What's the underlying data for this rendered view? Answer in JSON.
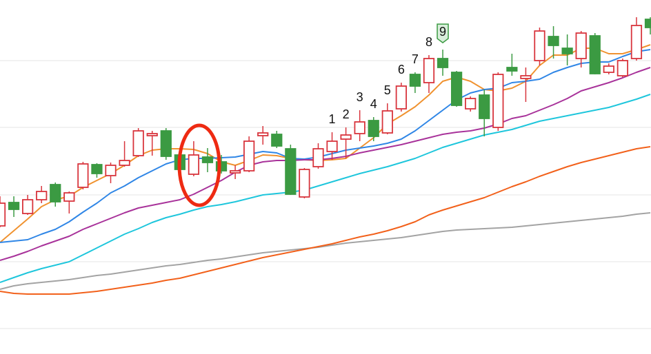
{
  "chart_data": {
    "type": "candlestick",
    "up_color": "#d8343c",
    "down_color": "#3b9a42",
    "ylim": [
      0,
      514
    ],
    "yticks": [
      37,
      134,
      231,
      329,
      426
    ],
    "grid": true,
    "open": [
      186,
      220,
      204,
      224,
      246,
      222,
      242,
      275,
      259,
      274,
      288,
      317,
      324,
      289,
      261,
      286,
      279,
      263,
      266,
      317,
      319,
      298,
      228,
      272,
      294,
      312,
      320,
      339,
      321,
      356,
      406,
      394,
      429,
      409,
      356,
      376,
      329,
      416,
      400,
      426,
      461,
      444,
      429,
      462,
      409,
      404,
      429,
      486
    ],
    "high": [
      229,
      229,
      231,
      244,
      249,
      236,
      279,
      277,
      278,
      309,
      328,
      324,
      328,
      292,
      309,
      299,
      289,
      274,
      316,
      331,
      324,
      304,
      270,
      306,
      322,
      329,
      354,
      344,
      364,
      394,
      409,
      434,
      442,
      411,
      374,
      384,
      409,
      436,
      416,
      474,
      476,
      464,
      469,
      466,
      422,
      429,
      489,
      489
    ],
    "low": [
      184,
      199,
      202,
      219,
      214,
      204,
      239,
      256,
      248,
      272,
      286,
      288,
      282,
      266,
      258,
      264,
      262,
      254,
      264,
      304,
      299,
      231,
      226,
      269,
      282,
      284,
      309,
      309,
      319,
      352,
      379,
      379,
      404,
      359,
      352,
      316,
      324,
      404,
      366,
      419,
      429,
      419,
      416,
      406,
      406,
      402,
      426,
      464
    ],
    "close": [
      219,
      210,
      224,
      236,
      221,
      234,
      276,
      262,
      274,
      281,
      324,
      320,
      287,
      268,
      289,
      278,
      266,
      266,
      309,
      321,
      302,
      232,
      268,
      298,
      309,
      318,
      337,
      316,
      353,
      389,
      389,
      429,
      416,
      361,
      371,
      342,
      406,
      411,
      404,
      469,
      448,
      436,
      466,
      407,
      418,
      426,
      477,
      474
    ],
    "lines": [
      {
        "color": "#f0922f",
        "values": [
          162,
          179,
          196,
          214,
          224,
          229,
          242,
          252,
          262,
          274,
          288,
          296,
          298,
          298,
          297,
          291,
          279,
          274,
          281,
          289,
          288,
          284,
          282,
          281,
          282,
          284,
          299,
          314,
          334,
          346,
          359,
          376,
          396,
          402,
          396,
          384,
          382,
          386,
          396,
          419,
          434,
          434,
          444,
          444,
          436,
          436,
          442,
          449
        ]
      },
      {
        "color": "#2f86e6",
        "values": [
          162,
          164,
          166,
          174,
          181,
          192,
          206,
          219,
          234,
          244,
          256,
          266,
          276,
          282,
          284,
          284,
          285,
          286,
          290,
          294,
          292,
          284,
          283,
          286,
          291,
          296,
          299,
          302,
          306,
          312,
          324,
          339,
          354,
          369,
          379,
          384,
          386,
          394,
          396,
          399,
          409,
          416,
          422,
          424,
          424,
          432,
          439,
          442
        ]
      },
      {
        "color": "#a8329a",
        "values": [
          136,
          142,
          149,
          157,
          164,
          171,
          181,
          189,
          197,
          205,
          212,
          216,
          220,
          224,
          232,
          242,
          252,
          264,
          274,
          279,
          281,
          281,
          282,
          282,
          284,
          287,
          292,
          296,
          300,
          304,
          309,
          314,
          319,
          322,
          324,
          328,
          334,
          342,
          346,
          354,
          362,
          371,
          382,
          388,
          394,
          401,
          409,
          416
        ]
      },
      {
        "color": "#1ec6dc",
        "values": [
          104,
          111,
          118,
          124,
          129,
          134,
          144,
          154,
          164,
          174,
          182,
          191,
          198,
          203,
          209,
          214,
          217,
          221,
          226,
          231,
          233,
          235,
          238,
          244,
          250,
          256,
          262,
          267,
          272,
          278,
          284,
          292,
          300,
          306,
          312,
          318,
          322,
          326,
          332,
          338,
          342,
          346,
          350,
          354,
          358,
          364,
          370,
          377
        ]
      },
      {
        "color": "#a3a3a3",
        "values": [
          94,
          99,
          102,
          104,
          106,
          108,
          111,
          114,
          116,
          119,
          122,
          125,
          128,
          130,
          133,
          136,
          138,
          141,
          144,
          147,
          149,
          151,
          153,
          155,
          158,
          161,
          163,
          165,
          167,
          169,
          172,
          175,
          178,
          180,
          181,
          182,
          183,
          184,
          186,
          188,
          190,
          192,
          194,
          196,
          198,
          200,
          203,
          205
        ]
      },
      {
        "color": "#f2601a",
        "values": [
          91,
          88,
          87,
          87,
          87,
          87,
          89,
          91,
          94,
          97,
          100,
          103,
          107,
          110,
          115,
          120,
          125,
          130,
          135,
          140,
          144,
          148,
          152,
          156,
          160,
          165,
          170,
          174,
          179,
          185,
          192,
          202,
          209,
          215,
          221,
          227,
          235,
          243,
          250,
          258,
          265,
          272,
          278,
          283,
          288,
          293,
          298,
          301
        ]
      }
    ],
    "td_counts": [
      null,
      null,
      null,
      null,
      null,
      null,
      null,
      null,
      null,
      null,
      null,
      null,
      null,
      null,
      null,
      null,
      null,
      null,
      null,
      null,
      null,
      null,
      null,
      null,
      1,
      2,
      3,
      4,
      5,
      6,
      7,
      8,
      9,
      null,
      null,
      null,
      null,
      null,
      null,
      null,
      null,
      null,
      null,
      null,
      null,
      null,
      null,
      null
    ],
    "td_badge_color": "#3b9a42"
  }
}
